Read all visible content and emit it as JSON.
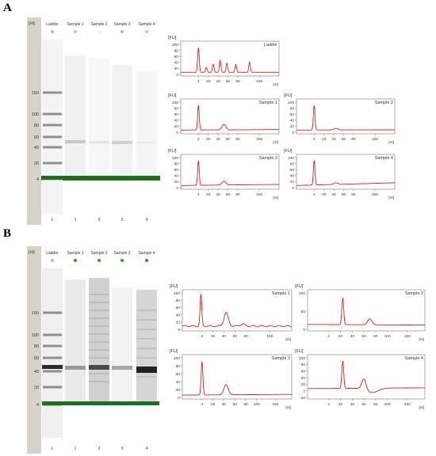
{
  "panels": [
    {
      "label": "A",
      "gel": {
        "unit": "[nt]",
        "ladder_sizes": [
          "150",
          "100",
          "80",
          "60",
          "40",
          "20",
          "4"
        ],
        "lanes": [
          {
            "header": "Ladder",
            "number": "L",
            "dot": "#b8b8b8"
          },
          {
            "header": "Sample 1",
            "number": "1",
            "dot": "#a8dca0"
          },
          {
            "header": "Sample 2",
            "number": "2",
            "dot": "#e6f4d8"
          },
          {
            "header": "Sample 3",
            "number": "3",
            "dot": "#8ed28a"
          },
          {
            "header": "Sample 4",
            "number": "4",
            "dot": "#a8dca0"
          }
        ]
      },
      "electropherograms": [
        {
          "title": "Ladder",
          "ylabel": "[FU]",
          "xlabel": "[nt]",
          "yticks": [
            "100",
            "80",
            "60",
            "40",
            "20",
            "0"
          ],
          "xticks": [
            "4",
            "20",
            "40",
            "60",
            "80",
            "150"
          ],
          "ymin": 0,
          "ymax": 110
        },
        {
          "title": "Sample 1",
          "ylabel": "[FU]",
          "xlabel": "[nt]",
          "yticks": [
            "100",
            "80",
            "60",
            "40",
            "20",
            "0"
          ],
          "xticks": [
            "4",
            "20",
            "40",
            "60",
            "80",
            "150"
          ],
          "ymin": 0,
          "ymax": 110
        },
        {
          "title": "Sample 2",
          "ylabel": "[FU]",
          "xlabel": "[nt]",
          "yticks": [
            "100",
            "80",
            "60",
            "40",
            "20",
            "0"
          ],
          "xticks": [
            "4",
            "20",
            "40",
            "60",
            "80",
            "150"
          ],
          "ymin": 0,
          "ymax": 110
        },
        {
          "title": "Sample 3",
          "ylabel": "[FU]",
          "xlabel": "[nt]",
          "yticks": [
            "100",
            "80",
            "60",
            "40",
            "20",
            "0"
          ],
          "xticks": [
            "4",
            "20",
            "40",
            "60",
            "80",
            "150"
          ],
          "ymin": 0,
          "ymax": 110
        },
        {
          "title": "Sample 4",
          "ylabel": "[FU]",
          "xlabel": "[nt]",
          "yticks": [
            "100",
            "80",
            "60",
            "40",
            "20",
            "0"
          ],
          "xticks": [
            "4",
            "20",
            "40",
            "60",
            "80",
            "150"
          ],
          "ymin": 0,
          "ymax": 110
        }
      ]
    },
    {
      "label": "B",
      "gel": {
        "unit": "[nt]",
        "ladder_sizes": [
          "150",
          "100",
          "80",
          "60",
          "40",
          "20",
          "4"
        ],
        "lanes": [
          {
            "header": "Ladder",
            "number": "L",
            "dot": "#b8b8b8"
          },
          {
            "header": "Sample 1",
            "number": "1",
            "dot": "#22a02a"
          },
          {
            "header": "Sample 2",
            "number": "2",
            "dot": "#22a02a"
          },
          {
            "header": "Sample 3",
            "number": "3",
            "dot": "#22a02a"
          },
          {
            "header": "Sample 4",
            "number": "4",
            "dot": "#22a02a"
          }
        ]
      },
      "electropherograms": [
        {
          "title": "Sample 1",
          "ylabel": "[FU]",
          "xlabel": "[nt]",
          "yticks": [
            "100",
            "80",
            "60",
            "40",
            "20",
            "0"
          ],
          "xticks": [
            "4",
            "20",
            "40",
            "60",
            "80",
            "150"
          ],
          "ymin": 0,
          "ymax": 110
        },
        {
          "title": "Sample 2",
          "ylabel": "[FU]",
          "xlabel": "[nt]",
          "yticks": [
            "100",
            "50",
            "0"
          ],
          "xticks": [
            "4",
            "20",
            "40",
            "60",
            "80",
            "100",
            "150"
          ],
          "ymin": -10,
          "ymax": 130
        },
        {
          "title": "Sample 3",
          "ylabel": "[FU]",
          "xlabel": "[nt]",
          "yticks": [
            "100",
            "80",
            "60",
            "40",
            "20",
            "0"
          ],
          "xticks": [
            "4",
            "20",
            "40",
            "60",
            "80",
            "100",
            "150"
          ],
          "ymin": 0,
          "ymax": 110
        },
        {
          "title": "Sample 4",
          "ylabel": "[FU]",
          "xlabel": "[nt]",
          "yticks": [
            "100",
            "80",
            "60",
            "40",
            "20",
            "0",
            "-20"
          ],
          "xticks": [
            "4",
            "20",
            "40",
            "60",
            "80",
            "100",
            "150"
          ],
          "ymin": -25,
          "ymax": 110
        }
      ]
    }
  ],
  "colors": {
    "trace": "#d62020",
    "ladder_band": "#9a9a9a",
    "marker_band": "#1e6e1e",
    "axis": "#666666",
    "strip": "#d6d3cc"
  }
}
